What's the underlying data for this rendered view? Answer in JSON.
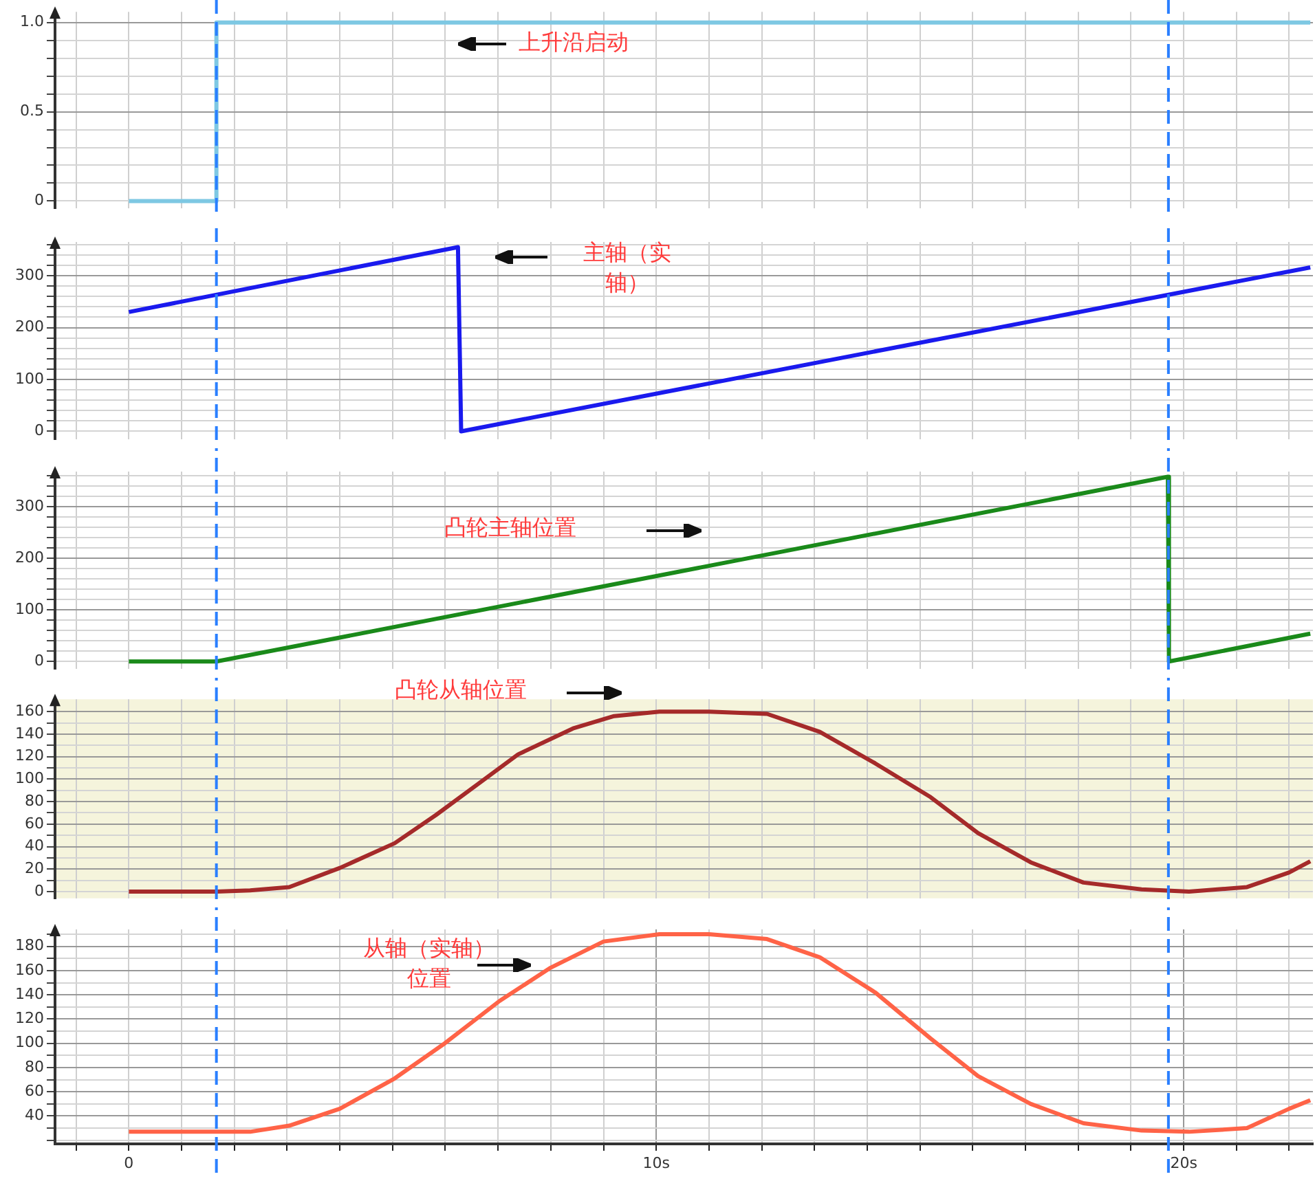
{
  "chart_data": [
    {
      "type": "step",
      "x": [
        0,
        1.66,
        22.4
      ],
      "values": [
        0,
        1,
        1
      ],
      "color": "#7ec8e3",
      "xlim": [
        -1.4,
        22.45
      ],
      "ylim": [
        -0.04,
        1.06
      ],
      "xticks": [
        {
          "value": -1,
          "label": null
        },
        {
          "value": 0,
          "label": null
        },
        {
          "value": 1,
          "label": null
        },
        {
          "value": 2,
          "label": null
        },
        {
          "value": 3,
          "label": null
        },
        {
          "value": 4,
          "label": null
        },
        {
          "value": 5,
          "label": null
        },
        {
          "value": 6,
          "label": null
        },
        {
          "value": 7,
          "label": null
        },
        {
          "value": 8,
          "label": null
        },
        {
          "value": 9,
          "label": null
        },
        {
          "value": 10,
          "label": null
        },
        {
          "value": 11,
          "label": null
        },
        {
          "value": 12,
          "label": null
        },
        {
          "value": 13,
          "label": null
        },
        {
          "value": 14,
          "label": null
        },
        {
          "value": 15,
          "label": null
        },
        {
          "value": 16,
          "label": null
        },
        {
          "value": 17,
          "label": null
        },
        {
          "value": 18,
          "label": null
        },
        {
          "value": 19,
          "label": null
        },
        {
          "value": 20,
          "label": null
        },
        {
          "value": 21,
          "label": null
        },
        {
          "value": 22,
          "label": null
        }
      ],
      "yticks": [
        0,
        {
          "value": 0.1,
          "label": null
        },
        {
          "value": 0.2,
          "label": null
        },
        {
          "value": 0.3,
          "label": null
        },
        {
          "value": 0.4,
          "label": null
        },
        0.5,
        {
          "value": 0.6,
          "label": null
        },
        {
          "value": 0.7,
          "label": null
        },
        {
          "value": 0.8,
          "label": null
        },
        {
          "value": 0.9,
          "label": null
        },
        {
          "value": 1,
          "label": "1.0"
        }
      ],
      "grid": true,
      "tick_labels": "y",
      "ref_lines": [
        {
          "axis": "x",
          "value": 1.66,
          "color": "#2a7fff",
          "line_style": "dashed"
        },
        {
          "axis": "x",
          "value": 19.71,
          "color": "#2a7fff",
          "line_style": "dashed"
        }
      ],
      "annotations": [
        "上升沿启动"
      ]
    },
    {
      "type": "line",
      "x": [
        0,
        6.24,
        6.3,
        22.4
      ],
      "values": [
        230,
        355,
        0,
        316
      ],
      "color": "#1a1aee",
      "xlim": [
        -1.4,
        22.45
      ],
      "ylim": [
        -15,
        365
      ],
      "xticks": [
        {
          "value": -1,
          "label": null
        },
        {
          "value": 0,
          "label": null
        },
        {
          "value": 1,
          "label": null
        },
        {
          "value": 2,
          "label": null
        },
        {
          "value": 3,
          "label": null
        },
        {
          "value": 4,
          "label": null
        },
        {
          "value": 5,
          "label": null
        },
        {
          "value": 6,
          "label": null
        },
        {
          "value": 7,
          "label": null
        },
        {
          "value": 8,
          "label": null
        },
        {
          "value": 9,
          "label": null
        },
        {
          "value": 10,
          "label": null
        },
        {
          "value": 11,
          "label": null
        },
        {
          "value": 12,
          "label": null
        },
        {
          "value": 13,
          "label": null
        },
        {
          "value": 14,
          "label": null
        },
        {
          "value": 15,
          "label": null
        },
        {
          "value": 16,
          "label": null
        },
        {
          "value": 17,
          "label": null
        },
        {
          "value": 18,
          "label": null
        },
        {
          "value": 19,
          "label": null
        },
        {
          "value": 20,
          "label": null
        },
        {
          "value": 21,
          "label": null
        },
        {
          "value": 22,
          "label": null
        }
      ],
      "yticks": [
        0,
        {
          "value": 20,
          "label": null
        },
        {
          "value": 40,
          "label": null
        },
        {
          "value": 60,
          "label": null
        },
        {
          "value": 80,
          "label": null
        },
        100,
        {
          "value": 120,
          "label": null
        },
        {
          "value": 140,
          "label": null
        },
        {
          "value": 160,
          "label": null
        },
        {
          "value": 180,
          "label": null
        },
        200,
        {
          "value": 220,
          "label": null
        },
        {
          "value": 240,
          "label": null
        },
        {
          "value": 260,
          "label": null
        },
        {
          "value": 280,
          "label": null
        },
        300,
        {
          "value": 320,
          "label": null
        },
        {
          "value": 340,
          "label": null
        },
        {
          "value": 360,
          "label": null
        }
      ],
      "grid": true,
      "tick_labels": "y",
      "ref_lines": [
        {
          "axis": "x",
          "value": 1.66,
          "color": "#2a7fff",
          "line_style": "dashed"
        },
        {
          "axis": "x",
          "value": 19.71,
          "color": "#2a7fff",
          "line_style": "dashed"
        }
      ],
      "annotations": [
        "主轴（实轴）"
      ]
    },
    {
      "type": "line",
      "x": [
        0,
        1.66,
        19.7,
        19.72,
        22.4
      ],
      "values": [
        0,
        0,
        358,
        0,
        54
      ],
      "color": "#1a8a1a",
      "xlim": [
        -1.4,
        22.45
      ],
      "ylim": [
        -14,
        368
      ],
      "xticks": [
        {
          "value": -1,
          "label": null
        },
        {
          "value": 0,
          "label": null
        },
        {
          "value": 1,
          "label": null
        },
        {
          "value": 2,
          "label": null
        },
        {
          "value": 3,
          "label": null
        },
        {
          "value": 4,
          "label": null
        },
        {
          "value": 5,
          "label": null
        },
        {
          "value": 6,
          "label": null
        },
        {
          "value": 7,
          "label": null
        },
        {
          "value": 8,
          "label": null
        },
        {
          "value": 9,
          "label": null
        },
        {
          "value": 10,
          "label": null
        },
        {
          "value": 11,
          "label": null
        },
        {
          "value": 12,
          "label": null
        },
        {
          "value": 13,
          "label": null
        },
        {
          "value": 14,
          "label": null
        },
        {
          "value": 15,
          "label": null
        },
        {
          "value": 16,
          "label": null
        },
        {
          "value": 17,
          "label": null
        },
        {
          "value": 18,
          "label": null
        },
        {
          "value": 19,
          "label": null
        },
        {
          "value": 20,
          "label": null
        },
        {
          "value": 21,
          "label": null
        },
        {
          "value": 22,
          "label": null
        }
      ],
      "yticks": [
        0,
        {
          "value": 20,
          "label": null
        },
        {
          "value": 40,
          "label": null
        },
        {
          "value": 60,
          "label": null
        },
        {
          "value": 80,
          "label": null
        },
        100,
        {
          "value": 120,
          "label": null
        },
        {
          "value": 140,
          "label": null
        },
        {
          "value": 160,
          "label": null
        },
        {
          "value": 180,
          "label": null
        },
        200,
        {
          "value": 220,
          "label": null
        },
        {
          "value": 240,
          "label": null
        },
        {
          "value": 260,
          "label": null
        },
        {
          "value": 280,
          "label": null
        },
        300,
        {
          "value": 320,
          "label": null
        },
        {
          "value": 340,
          "label": null
        },
        {
          "value": 360,
          "label": null
        }
      ],
      "grid": true,
      "tick_labels": "y",
      "ref_lines": [
        {
          "axis": "x",
          "value": 1.66,
          "color": "#2a7fff",
          "line_style": "dashed"
        },
        {
          "axis": "x",
          "value": 19.71,
          "color": "#2a7fff",
          "line_style": "dashed"
        }
      ],
      "annotations": [
        "凸轮主轴位置"
      ]
    },
    {
      "type": "line",
      "x": [
        0,
        1.66,
        2.3,
        3.04,
        4.0,
        5.04,
        5.82,
        6.6,
        7.38,
        8.42,
        9.2,
        10.06,
        11,
        12.1,
        13.1,
        14.15,
        15.2,
        16.1,
        17.1,
        18.1,
        19.2,
        20.1,
        21.2,
        22.0,
        22.4
      ],
      "values": [
        0,
        0,
        1,
        4,
        21,
        43,
        68,
        95,
        122,
        145,
        156,
        160,
        160,
        158,
        142,
        114,
        84,
        52,
        26,
        8,
        2,
        0,
        4,
        17,
        27
      ],
      "color": "#a52a2a",
      "xlim": [
        -1.4,
        22.45
      ],
      "ylim": [
        -6,
        171
      ],
      "xticks": [
        {
          "value": -1,
          "label": null
        },
        {
          "value": 0,
          "label": null
        },
        {
          "value": 1,
          "label": null
        },
        {
          "value": 2,
          "label": null
        },
        {
          "value": 3,
          "label": null
        },
        {
          "value": 4,
          "label": null
        },
        {
          "value": 5,
          "label": null
        },
        {
          "value": 6,
          "label": null
        },
        {
          "value": 7,
          "label": null
        },
        {
          "value": 8,
          "label": null
        },
        {
          "value": 9,
          "label": null
        },
        {
          "value": 10,
          "label": null
        },
        {
          "value": 11,
          "label": null
        },
        {
          "value": 12,
          "label": null
        },
        {
          "value": 13,
          "label": null
        },
        {
          "value": 14,
          "label": null
        },
        {
          "value": 15,
          "label": null
        },
        {
          "value": 16,
          "label": null
        },
        {
          "value": 17,
          "label": null
        },
        {
          "value": 18,
          "label": null
        },
        {
          "value": 19,
          "label": null
        },
        {
          "value": 20,
          "label": null
        },
        {
          "value": 21,
          "label": null
        },
        {
          "value": 22,
          "label": null
        }
      ],
      "yticks": [
        0,
        {
          "value": 10,
          "label": null
        },
        20,
        {
          "value": 30,
          "label": null
        },
        40,
        {
          "value": 50,
          "label": null
        },
        60,
        {
          "value": 70,
          "label": null
        },
        80,
        {
          "value": 90,
          "label": null
        },
        100,
        {
          "value": 110,
          "label": null
        },
        120,
        {
          "value": 130,
          "label": null
        },
        140,
        {
          "value": 150,
          "label": null
        },
        160
      ],
      "grid": true,
      "tick_labels": "y",
      "ref_lines": [
        {
          "axis": "x",
          "value": 1.66,
          "color": "#2a7fff",
          "line_style": "dashed"
        },
        {
          "axis": "x",
          "value": 19.71,
          "color": "#2a7fff",
          "line_style": "dashed"
        }
      ],
      "annotations": [
        "凸轮从轴位置"
      ]
    },
    {
      "type": "line",
      "x": [
        0,
        1.66,
        2.3,
        3.04,
        4.0,
        5.04,
        5.99,
        7.03,
        7.98,
        9.0,
        10.06,
        11,
        12.1,
        13.1,
        14.15,
        15.2,
        16.1,
        17.1,
        18.1,
        19.2,
        20.1,
        21.2,
        22.0,
        22.4
      ],
      "values": [
        27,
        27,
        27,
        32,
        46,
        71,
        100,
        135,
        162,
        184,
        190,
        190,
        186,
        171,
        142,
        104,
        73,
        50,
        34,
        28,
        27,
        30,
        46,
        53
      ],
      "color": "#ff6347",
      "xlim": [
        -1.4,
        22.45
      ],
      "ylim": [
        17,
        194
      ],
      "xticks": [
        {
          "value": -1,
          "label": null
        },
        0,
        {
          "value": 1,
          "label": null
        },
        {
          "value": 2,
          "label": null
        },
        {
          "value": 3,
          "label": null
        },
        {
          "value": 4,
          "label": null
        },
        {
          "value": 5,
          "label": null
        },
        {
          "value": 6,
          "label": null
        },
        {
          "value": 7,
          "label": null
        },
        {
          "value": 8,
          "label": null
        },
        {
          "value": 9,
          "label": null
        },
        {
          "value": 10,
          "label": "10s"
        },
        {
          "value": 11,
          "label": null
        },
        {
          "value": 12,
          "label": null
        },
        {
          "value": 13,
          "label": null
        },
        {
          "value": 14,
          "label": null
        },
        {
          "value": 15,
          "label": null
        },
        {
          "value": 16,
          "label": null
        },
        {
          "value": 17,
          "label": null
        },
        {
          "value": 18,
          "label": null
        },
        {
          "value": 19,
          "label": null
        },
        {
          "value": 20,
          "label": "20s"
        },
        {
          "value": 21,
          "label": null
        },
        {
          "value": 22,
          "label": null
        }
      ],
      "yticks": [
        {
          "value": 20,
          "label": null
        },
        {
          "value": 30,
          "label": null
        },
        40,
        {
          "value": 50,
          "label": null
        },
        60,
        {
          "value": 70,
          "label": null
        },
        80,
        {
          "value": 90,
          "label": null
        },
        100,
        {
          "value": 110,
          "label": null
        },
        120,
        {
          "value": 130,
          "label": null
        },
        140,
        {
          "value": 150,
          "label": null
        },
        160,
        {
          "value": 170,
          "label": null
        },
        180,
        {
          "value": 190,
          "label": null
        }
      ],
      "grid": true,
      "ref_lines": [
        {
          "axis": "x",
          "value": 1.66,
          "color": "#2a7fff",
          "line_style": "dashed"
        },
        {
          "axis": "x",
          "value": 19.71,
          "color": "#2a7fff",
          "line_style": "dashed"
        }
      ],
      "annotations": [
        "从轴（实轴）位置"
      ]
    }
  ]
}
